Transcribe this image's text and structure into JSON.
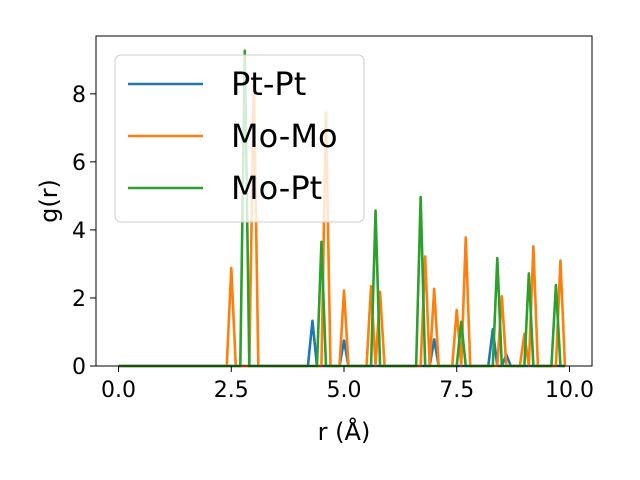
{
  "chart_data": {
    "type": "line",
    "xlabel": "r (Å)",
    "ylabel": "g(r)",
    "xlim": [
      -0.5,
      10.5
    ],
    "ylim": [
      0,
      9.7
    ],
    "xticks": [
      0.0,
      2.5,
      5.0,
      7.5,
      10.0
    ],
    "xtick_labels": [
      "0.0",
      "2.5",
      "5.0",
      "7.5",
      "10.0"
    ],
    "yticks": [
      0,
      2,
      4,
      6,
      8
    ],
    "ytick_labels": [
      "0",
      "2",
      "4",
      "6",
      "8"
    ],
    "grid": false,
    "legend_position": "upper-left",
    "series": [
      {
        "name": "Pt-Pt",
        "color": "#1f77b4",
        "x": [
          0.0,
          4.2,
          4.3,
          4.4,
          4.9,
          5.0,
          5.1,
          6.9,
          7.0,
          7.1,
          8.2,
          8.3,
          8.4,
          8.5,
          8.6,
          8.7,
          9.9
        ],
        "y": [
          0,
          0,
          1.33,
          0,
          0,
          0.75,
          0,
          0,
          0.78,
          0,
          0,
          1.08,
          0,
          0,
          0.33,
          0,
          0
        ]
      },
      {
        "name": "Mo-Mo",
        "color": "#ff7f0e",
        "x": [
          0.0,
          2.4,
          2.5,
          2.6,
          2.9,
          3.0,
          3.1,
          4.5,
          4.6,
          4.7,
          4.9,
          5.0,
          5.1,
          5.5,
          5.6,
          5.7,
          5.8,
          5.9,
          6.7,
          6.8,
          6.9,
          7.0,
          7.1,
          7.4,
          7.5,
          7.6,
          7.7,
          7.8,
          8.4,
          8.5,
          8.6,
          8.9,
          9.0,
          9.1,
          9.2,
          9.3,
          9.7,
          9.8,
          9.9
        ],
        "y": [
          0,
          0,
          2.88,
          0,
          0,
          8.4,
          0,
          0,
          7.45,
          0,
          0,
          2.22,
          0,
          0,
          2.35,
          0,
          2.18,
          0,
          0,
          3.22,
          0,
          2.27,
          0,
          0,
          1.65,
          0,
          3.78,
          0,
          0,
          2.05,
          0,
          0,
          0.94,
          0,
          3.52,
          0,
          0,
          3.1,
          0
        ]
      },
      {
        "name": "Mo-Pt",
        "color": "#2ca02c",
        "x": [
          0.0,
          2.7,
          2.8,
          2.9,
          4.4,
          4.5,
          4.6,
          5.6,
          5.7,
          5.8,
          6.6,
          6.7,
          6.8,
          7.5,
          7.6,
          7.7,
          8.3,
          8.4,
          8.5,
          9.0,
          9.1,
          9.2,
          9.6,
          9.7,
          9.8,
          9.9
        ],
        "y": [
          0,
          0,
          9.27,
          0,
          0,
          3.65,
          0,
          0,
          4.57,
          0,
          0,
          4.97,
          0,
          0,
          1.3,
          0,
          0,
          3.17,
          0,
          0,
          2.72,
          0,
          0,
          2.38,
          0,
          0
        ]
      }
    ]
  }
}
